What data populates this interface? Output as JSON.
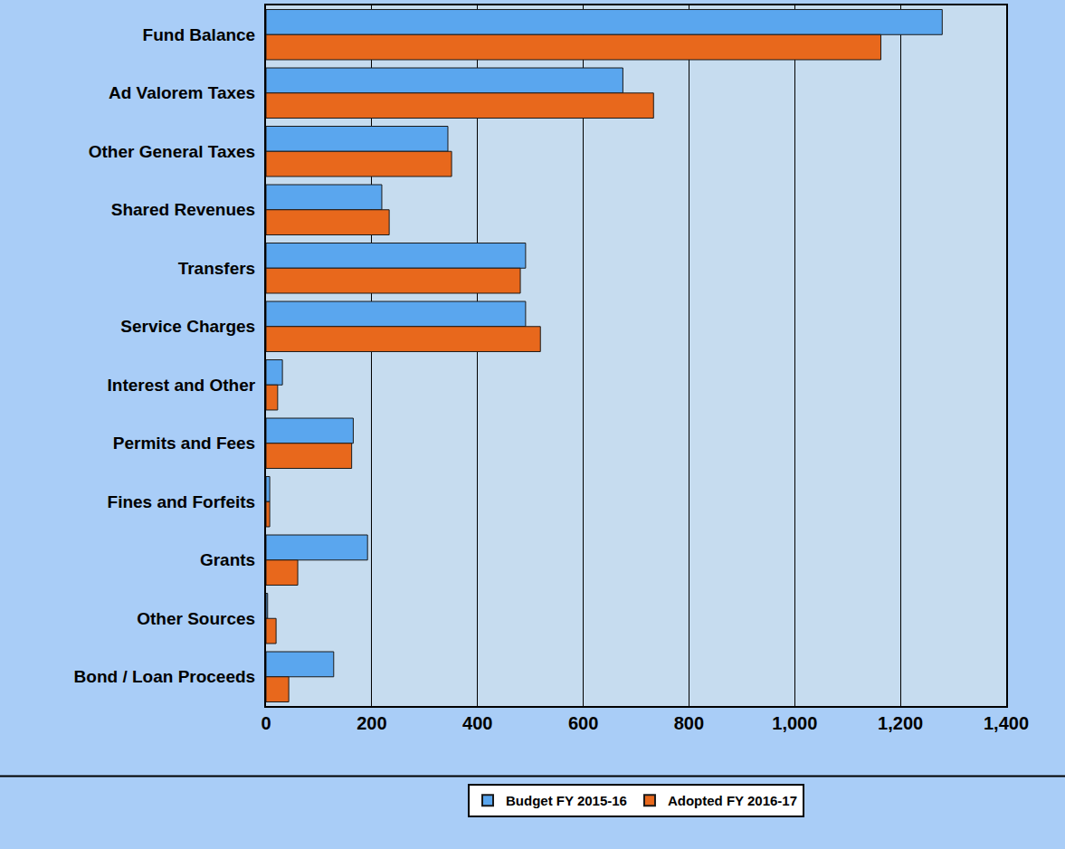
{
  "chart_data": {
    "type": "bar",
    "orientation": "horizontal",
    "categories": [
      "Fund Balance",
      "Ad Valorem Taxes",
      "Other General Taxes",
      "Shared Revenues",
      "Transfers",
      "Service Charges",
      "Interest and Other",
      "Permits and Fees",
      "Fines and Forfeits",
      "Grants",
      "Other Sources",
      "Bond / Loan Proceeds"
    ],
    "series": [
      {
        "name": "Budget FY 2015-16",
        "color": "#5aa6ee",
        "values": [
          1279,
          675,
          344,
          219,
          491,
          491,
          31,
          165,
          7,
          192,
          3,
          128
        ]
      },
      {
        "name": "Adopted FY 2016-17",
        "color": "#e8681c",
        "values": [
          1163,
          733,
          351,
          233,
          481,
          519,
          22,
          162,
          7,
          60,
          19,
          43
        ]
      }
    ],
    "xlim": [
      0,
      1400
    ],
    "xticks": [
      0,
      200,
      400,
      600,
      800,
      {
        "value": 1000,
        "label": "1,000"
      },
      {
        "value": 1200,
        "label": "1,200"
      },
      {
        "value": 1400,
        "label": "1,400"
      }
    ],
    "grid": true,
    "legend": "bottom"
  }
}
